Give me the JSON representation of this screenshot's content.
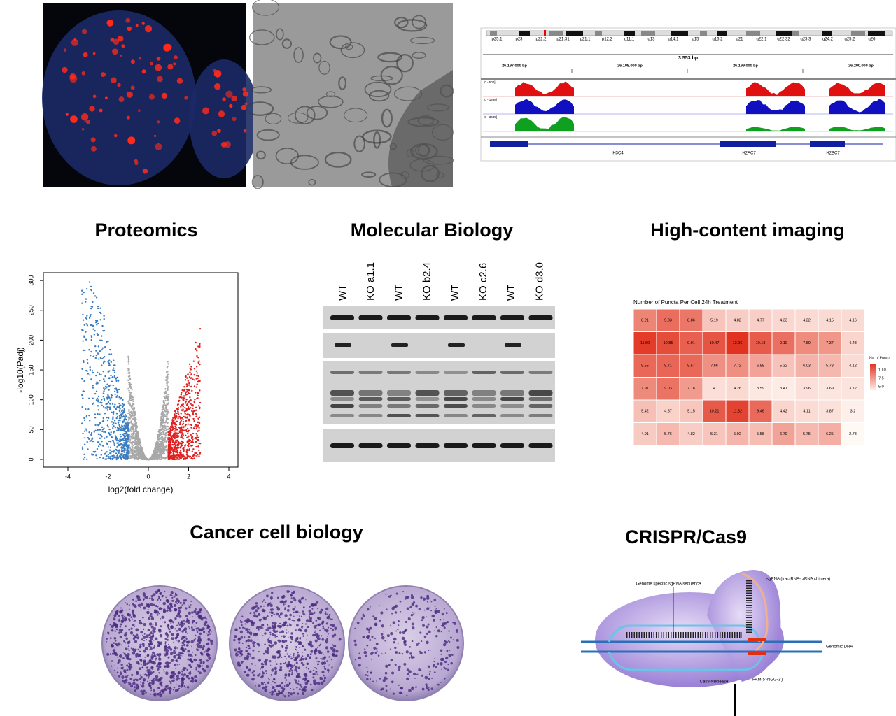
{
  "sections": [
    {
      "title": "Proteomics"
    },
    {
      "title": "Molecular Biology"
    },
    {
      "title": "High-content imaging"
    },
    {
      "title": "Cancer cell biology"
    },
    {
      "title": "CRISPR/Cas9"
    }
  ],
  "genome_browser": {
    "bands": [
      "p25.1",
      "p23",
      "p22.2",
      "p21.31",
      "p21.1",
      "p12.2",
      "q11.1",
      "q13",
      "q14.1",
      "q15",
      "q16.2",
      "q21",
      "q22.1",
      "q22.32",
      "q23.3",
      "q24.2",
      "q25.2",
      "q26"
    ],
    "span": "3.553 bp",
    "positions": [
      "26.197.000 bp",
      "26.198.000 bp",
      "26.199.000 bp",
      "26.200.000 bp"
    ],
    "track_ranges": [
      "[0 - 500]",
      "[0 - 1498]",
      "[0 - 3435]"
    ],
    "genes": [
      "H3C4",
      "H2AC7",
      "H2BC7"
    ]
  },
  "volcano": {
    "y_label": "-log10(Padj)",
    "x_label": "log2(fold change)",
    "xticks": [
      -4,
      -2,
      0,
      2,
      4
    ],
    "yticks": [
      0,
      50,
      100,
      150,
      200,
      250,
      300
    ]
  },
  "western_blot": {
    "lanes": [
      "WT",
      "KO a1.1",
      "WT",
      "KO b2.4",
      "WT",
      "KO c2.6",
      "WT",
      "KO d3.0"
    ]
  },
  "heatmap": {
    "title": "Number of Puncta Per Cell 24h Treatment",
    "rows": [
      [
        "8.21",
        "9.33",
        "8.86",
        "5.19",
        "4.82",
        "4.77",
        "4.33",
        "4.22",
        "4.15",
        "4.16"
      ],
      [
        "11.60",
        "10.85",
        "9.91",
        "10.47",
        "12.06",
        "10.18",
        "9.19",
        "7.89",
        "7.37",
        "4.43"
      ],
      [
        "9.55",
        "9.71",
        "9.57",
        "7.66",
        "7.72",
        "6.85",
        "5.32",
        "6.03",
        "5.78",
        "4.12"
      ],
      [
        "7.97",
        "9.03",
        "7.18",
        "4",
        "4.26",
        "3.59",
        "3.41",
        "3.96",
        "3.69",
        "3.72"
      ],
      [
        "5.42",
        "4.57",
        "5.15",
        "10.21",
        "11.32",
        "9.46",
        "4.42",
        "4.11",
        "3.87",
        "3.2"
      ],
      [
        "4.91",
        "5.76",
        "4.82",
        "5.21",
        "5.92",
        "5.58",
        "6.79",
        "5.75",
        "6.25",
        "2.73"
      ]
    ],
    "legend_title": "No. of Puncta",
    "legend_ticks": [
      "10.0",
      "7.5",
      "5.0"
    ]
  },
  "crispr": {
    "guide_label": "Genome specific sgRNA sequence",
    "sgrna_label": "sgRNA (tracrRNA-crRNA chimera)",
    "dna_label": "Genomic DNA",
    "pam_label": "PAM(5'-NGG-3')",
    "cas9_label": "Cas9 Nuclease"
  }
}
